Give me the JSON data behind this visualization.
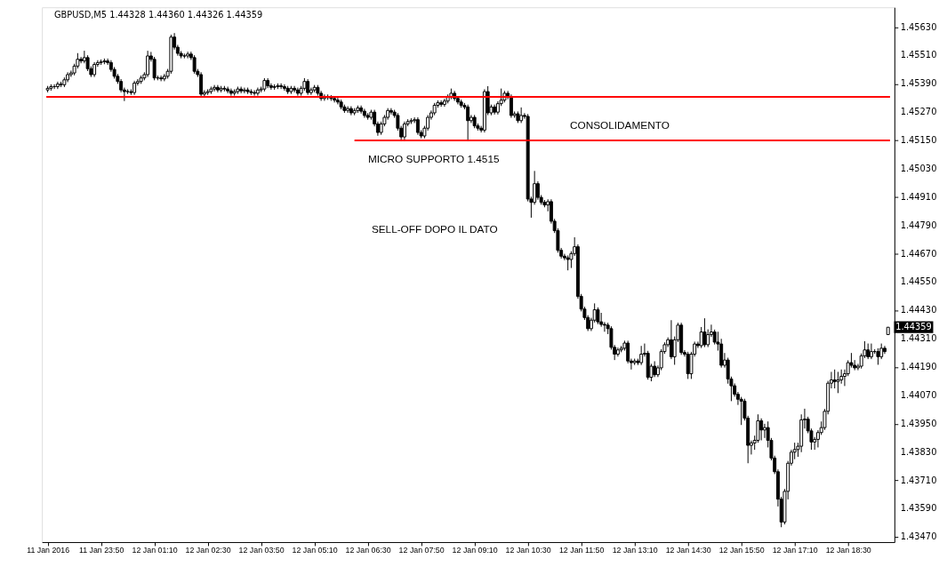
{
  "chart_data": {
    "type": "candlestick",
    "title": "GBPUSD,M5  1.44328 1.44360 1.44326 1.44359",
    "x": [
      "2016-01-11T22:30",
      "2016-01-11T22:35",
      "2016-01-11T22:40",
      "2016-01-11T22:45",
      "2016-01-11T22:50",
      "2016-01-11T22:55",
      "2016-01-11T23:00",
      "2016-01-11T23:05",
      "2016-01-11T23:10",
      "2016-01-11T23:15",
      "2016-01-11T23:20",
      "2016-01-11T23:25",
      "2016-01-11T23:30",
      "2016-01-11T23:35",
      "2016-01-11T23:40",
      "2016-01-11T23:45",
      "2016-01-11T23:50",
      "2016-01-11T23:55",
      "2016-01-12T00:00",
      "2016-01-12T00:05",
      "2016-01-12T00:10",
      "2016-01-12T00:15",
      "2016-01-12T00:20",
      "2016-01-12T00:25",
      "2016-01-12T00:30",
      "2016-01-12T00:35",
      "2016-01-12T00:40",
      "2016-01-12T00:45",
      "2016-01-12T00:50",
      "2016-01-12T00:55",
      "2016-01-12T01:00",
      "2016-01-12T01:05",
      "2016-01-12T01:10",
      "2016-01-12T01:15",
      "2016-01-12T01:20",
      "2016-01-12T01:25",
      "2016-01-12T01:30",
      "2016-01-12T01:35",
      "2016-01-12T01:40",
      "2016-01-12T01:45",
      "2016-01-12T01:50",
      "2016-01-12T01:55",
      "2016-01-12T02:00",
      "2016-01-12T02:05",
      "2016-01-12T02:10",
      "2016-01-12T02:15",
      "2016-01-12T02:20",
      "2016-01-12T02:25",
      "2016-01-12T02:30",
      "2016-01-12T02:35",
      "2016-01-12T02:40",
      "2016-01-12T02:45",
      "2016-01-12T02:50",
      "2016-01-12T02:55",
      "2016-01-12T03:00",
      "2016-01-12T03:05",
      "2016-01-12T03:10",
      "2016-01-12T03:15",
      "2016-01-12T03:20",
      "2016-01-12T03:25",
      "2016-01-12T03:30",
      "2016-01-12T03:35",
      "2016-01-12T03:40",
      "2016-01-12T03:45",
      "2016-01-12T03:50",
      "2016-01-12T03:55",
      "2016-01-12T04:00",
      "2016-01-12T04:05",
      "2016-01-12T04:10",
      "2016-01-12T04:15",
      "2016-01-12T04:20",
      "2016-01-12T04:25",
      "2016-01-12T04:30",
      "2016-01-12T04:35",
      "2016-01-12T04:40",
      "2016-01-12T04:45",
      "2016-01-12T04:50",
      "2016-01-12T04:55",
      "2016-01-12T05:00",
      "2016-01-12T05:05",
      "2016-01-12T05:10",
      "2016-01-12T05:15",
      "2016-01-12T05:20",
      "2016-01-12T05:25",
      "2016-01-12T05:30",
      "2016-01-12T05:35",
      "2016-01-12T05:40",
      "2016-01-12T05:45",
      "2016-01-12T05:50",
      "2016-01-12T05:55",
      "2016-01-12T06:00",
      "2016-01-12T06:05",
      "2016-01-12T06:10",
      "2016-01-12T06:15",
      "2016-01-12T06:20",
      "2016-01-12T06:25",
      "2016-01-12T06:30",
      "2016-01-12T06:35",
      "2016-01-12T06:40",
      "2016-01-12T06:45",
      "2016-01-12T06:50",
      "2016-01-12T06:55",
      "2016-01-12T07:00",
      "2016-01-12T07:05",
      "2016-01-12T07:10",
      "2016-01-12T07:15",
      "2016-01-12T07:20",
      "2016-01-12T07:25",
      "2016-01-12T07:30",
      "2016-01-12T07:35",
      "2016-01-12T07:40",
      "2016-01-12T07:45",
      "2016-01-12T07:50",
      "2016-01-12T07:55",
      "2016-01-12T08:00",
      "2016-01-12T08:05",
      "2016-01-12T08:10",
      "2016-01-12T08:15",
      "2016-01-12T08:20",
      "2016-01-12T08:25",
      "2016-01-12T08:30",
      "2016-01-12T08:35",
      "2016-01-12T08:40",
      "2016-01-12T08:45",
      "2016-01-12T08:50",
      "2016-01-12T08:55",
      "2016-01-12T09:00",
      "2016-01-12T09:05",
      "2016-01-12T09:10",
      "2016-01-12T09:15",
      "2016-01-12T09:20",
      "2016-01-12T09:25",
      "2016-01-12T09:30",
      "2016-01-12T09:35",
      "2016-01-12T09:40",
      "2016-01-12T09:45",
      "2016-01-12T09:50",
      "2016-01-12T09:55",
      "2016-01-12T10:00",
      "2016-01-12T10:05",
      "2016-01-12T10:10",
      "2016-01-12T10:15",
      "2016-01-12T10:20",
      "2016-01-12T10:25",
      "2016-01-12T10:30",
      "2016-01-12T10:35",
      "2016-01-12T10:40",
      "2016-01-12T10:45",
      "2016-01-12T10:50",
      "2016-01-12T10:55",
      "2016-01-12T11:00",
      "2016-01-12T11:05",
      "2016-01-12T11:10",
      "2016-01-12T11:15",
      "2016-01-12T11:20",
      "2016-01-12T11:25",
      "2016-01-12T11:30",
      "2016-01-12T11:35",
      "2016-01-12T11:40",
      "2016-01-12T11:45",
      "2016-01-12T11:50",
      "2016-01-12T11:55",
      "2016-01-12T12:00",
      "2016-01-12T12:05",
      "2016-01-12T12:10",
      "2016-01-12T12:15",
      "2016-01-12T12:20",
      "2016-01-12T12:25",
      "2016-01-12T12:30",
      "2016-01-12T12:35",
      "2016-01-12T12:40",
      "2016-01-12T12:45",
      "2016-01-12T12:50",
      "2016-01-12T12:55",
      "2016-01-12T13:00",
      "2016-01-12T13:05",
      "2016-01-12T13:10",
      "2016-01-12T13:15",
      "2016-01-12T13:20",
      "2016-01-12T13:25",
      "2016-01-12T13:30",
      "2016-01-12T13:35",
      "2016-01-12T13:40",
      "2016-01-12T13:45",
      "2016-01-12T13:50",
      "2016-01-12T13:55",
      "2016-01-12T14:00",
      "2016-01-12T14:05",
      "2016-01-12T14:10",
      "2016-01-12T14:15",
      "2016-01-12T14:20",
      "2016-01-12T14:25",
      "2016-01-12T14:30",
      "2016-01-12T14:35",
      "2016-01-12T14:40",
      "2016-01-12T14:45",
      "2016-01-12T14:50",
      "2016-01-12T14:55",
      "2016-01-12T15:00",
      "2016-01-12T15:05",
      "2016-01-12T15:10",
      "2016-01-12T15:15",
      "2016-01-12T15:20",
      "2016-01-12T15:25",
      "2016-01-12T15:30",
      "2016-01-12T15:35",
      "2016-01-12T15:40",
      "2016-01-12T15:45",
      "2016-01-12T15:50",
      "2016-01-12T15:55",
      "2016-01-12T16:00",
      "2016-01-12T16:05",
      "2016-01-12T16:10",
      "2016-01-12T16:15",
      "2016-01-12T16:20",
      "2016-01-12T16:25",
      "2016-01-12T16:30",
      "2016-01-12T16:35",
      "2016-01-12T16:40",
      "2016-01-12T16:45",
      "2016-01-12T16:50",
      "2016-01-12T16:55",
      "2016-01-12T17:00",
      "2016-01-12T17:05",
      "2016-01-12T17:10",
      "2016-01-12T17:15",
      "2016-01-12T17:20",
      "2016-01-12T17:25",
      "2016-01-12T17:30",
      "2016-01-12T17:35",
      "2016-01-12T17:40",
      "2016-01-12T17:45",
      "2016-01-12T17:50",
      "2016-01-12T17:55",
      "2016-01-12T18:00",
      "2016-01-12T18:05",
      "2016-01-12T18:10",
      "2016-01-12T18:15",
      "2016-01-12T18:20",
      "2016-01-12T18:25",
      "2016-01-12T18:30",
      "2016-01-12T18:35",
      "2016-01-12T18:40",
      "2016-01-12T18:45",
      "2016-01-12T18:50",
      "2016-01-12T18:55",
      "2016-01-12T19:00",
      "2016-01-12T19:05",
      "2016-01-12T19:10",
      "2016-01-12T19:15",
      "2016-01-12T19:20",
      "2016-01-12T19:25",
      "2016-01-12T19:30"
    ],
    "ohlc": [
      [
        1.45364,
        1.45381,
        1.45354,
        1.45371
      ],
      [
        1.45371,
        1.45388,
        1.45361,
        1.45378
      ],
      [
        1.45378,
        1.45388,
        1.45368,
        1.45378
      ],
      [
        1.45378,
        1.45399,
        1.45368,
        1.45389
      ],
      [
        1.45389,
        1.45399,
        1.45376,
        1.45386
      ],
      [
        1.45386,
        1.45417,
        1.45376,
        1.45407
      ],
      [
        1.45407,
        1.45439,
        1.45397,
        1.45429
      ],
      [
        1.45429,
        1.45446,
        1.45419,
        1.45436
      ],
      [
        1.45436,
        1.45475,
        1.45426,
        1.45465
      ],
      [
        1.45465,
        1.4552,
        1.45455,
        1.45494
      ],
      [
        1.45494,
        1.45504,
        1.45477,
        1.45487
      ],
      [
        1.45487,
        1.4553,
        1.45477,
        1.45501
      ],
      [
        1.45501,
        1.45511,
        1.45444,
        1.45454
      ],
      [
        1.45454,
        1.45464,
        1.45419,
        1.45429
      ],
      [
        1.45429,
        1.45482,
        1.45419,
        1.45472
      ],
      [
        1.45472,
        1.4549,
        1.45462,
        1.4548
      ],
      [
        1.4548,
        1.45493,
        1.4547,
        1.45483
      ],
      [
        1.45483,
        1.45497,
        1.45473,
        1.45487
      ],
      [
        1.45487,
        1.45497,
        1.4547,
        1.4548
      ],
      [
        1.4548,
        1.4549,
        1.45441,
        1.45451
      ],
      [
        1.45451,
        1.45461,
        1.45412,
        1.45422
      ],
      [
        1.45422,
        1.45432,
        1.4539,
        1.454
      ],
      [
        1.454,
        1.4541,
        1.45354,
        1.45364
      ],
      [
        1.45364,
        1.45374,
        1.45317,
        1.45357
      ],
      [
        1.45357,
        1.45367,
        1.45347,
        1.45357
      ],
      [
        1.45357,
        1.45367,
        1.45343,
        1.45353
      ],
      [
        1.45353,
        1.45403,
        1.45343,
        1.45393
      ],
      [
        1.45393,
        1.4541,
        1.45383,
        1.454
      ],
      [
        1.454,
        1.45425,
        1.4539,
        1.45415
      ],
      [
        1.45415,
        1.45439,
        1.45405,
        1.45429
      ],
      [
        1.45429,
        1.4553,
        1.45419,
        1.45508
      ],
      [
        1.45508,
        1.45525,
        1.45484,
        1.45494
      ],
      [
        1.45494,
        1.45504,
        1.45405,
        1.45415
      ],
      [
        1.45415,
        1.45425,
        1.45405,
        1.45415
      ],
      [
        1.45415,
        1.45425,
        1.45401,
        1.45411
      ],
      [
        1.45411,
        1.45432,
        1.45401,
        1.45422
      ],
      [
        1.45422,
        1.45453,
        1.45412,
        1.45443
      ],
      [
        1.45443,
        1.45598,
        1.45433,
        1.45588
      ],
      [
        1.45588,
        1.45605,
        1.45535,
        1.45545
      ],
      [
        1.45545,
        1.45555,
        1.45509,
        1.45519
      ],
      [
        1.45519,
        1.45529,
        1.45498,
        1.45508
      ],
      [
        1.45508,
        1.45518,
        1.45498,
        1.45508
      ],
      [
        1.45508,
        1.45526,
        1.45498,
        1.45516
      ],
      [
        1.45516,
        1.45526,
        1.45491,
        1.45501
      ],
      [
        1.45501,
        1.45511,
        1.45433,
        1.45443
      ],
      [
        1.45443,
        1.45453,
        1.45419,
        1.45429
      ],
      [
        1.45429,
        1.45439,
        1.45336,
        1.45346
      ],
      [
        1.45346,
        1.45363,
        1.45336,
        1.45353
      ],
      [
        1.45353,
        1.45367,
        1.45343,
        1.45357
      ],
      [
        1.45357,
        1.45378,
        1.45347,
        1.45368
      ],
      [
        1.45368,
        1.45385,
        1.45358,
        1.45375
      ],
      [
        1.45375,
        1.45385,
        1.45354,
        1.45364
      ],
      [
        1.45364,
        1.45381,
        1.45354,
        1.45371
      ],
      [
        1.45371,
        1.45381,
        1.45358,
        1.45368
      ],
      [
        1.45368,
        1.45378,
        1.4535,
        1.4536
      ],
      [
        1.4536,
        1.4537,
        1.4534,
        1.4535
      ],
      [
        1.4535,
        1.45367,
        1.4534,
        1.45357
      ],
      [
        1.45357,
        1.45378,
        1.45347,
        1.45368
      ],
      [
        1.45368,
        1.45378,
        1.4535,
        1.4536
      ],
      [
        1.4536,
        1.45374,
        1.4535,
        1.45364
      ],
      [
        1.45364,
        1.45374,
        1.45347,
        1.45357
      ],
      [
        1.45357,
        1.45367,
        1.45343,
        1.45353
      ],
      [
        1.45353,
        1.45363,
        1.4534,
        1.4535
      ],
      [
        1.4535,
        1.45374,
        1.4534,
        1.45364
      ],
      [
        1.45364,
        1.45378,
        1.45354,
        1.45368
      ],
      [
        1.45368,
        1.45414,
        1.45358,
        1.45404
      ],
      [
        1.45404,
        1.45414,
        1.45372,
        1.45382
      ],
      [
        1.45382,
        1.45392,
        1.45365,
        1.45375
      ],
      [
        1.45375,
        1.45388,
        1.45365,
        1.45378
      ],
      [
        1.45378,
        1.45392,
        1.45368,
        1.45382
      ],
      [
        1.45382,
        1.45392,
        1.45368,
        1.45378
      ],
      [
        1.45378,
        1.45388,
        1.45361,
        1.45371
      ],
      [
        1.45371,
        1.45381,
        1.45347,
        1.45357
      ],
      [
        1.45357,
        1.45381,
        1.45347,
        1.45371
      ],
      [
        1.45371,
        1.45381,
        1.45354,
        1.45364
      ],
      [
        1.45364,
        1.45374,
        1.4534,
        1.4535
      ],
      [
        1.4535,
        1.45381,
        1.4534,
        1.45371
      ],
      [
        1.45371,
        1.45414,
        1.45361,
        1.454
      ],
      [
        1.454,
        1.4541,
        1.45343,
        1.45353
      ],
      [
        1.45353,
        1.45374,
        1.45343,
        1.45364
      ],
      [
        1.45364,
        1.45385,
        1.45354,
        1.45375
      ],
      [
        1.45375,
        1.45385,
        1.4534,
        1.4535
      ],
      [
        1.4535,
        1.4536,
        1.45318,
        1.45328
      ],
      [
        1.45328,
        1.45345,
        1.45318,
        1.45335
      ],
      [
        1.45335,
        1.45345,
        1.45322,
        1.45332
      ],
      [
        1.45332,
        1.45342,
        1.45318,
        1.45328
      ],
      [
        1.45328,
        1.45338,
        1.45311,
        1.45321
      ],
      [
        1.45321,
        1.45331,
        1.45303,
        1.45313
      ],
      [
        1.45313,
        1.45323,
        1.45282,
        1.45292
      ],
      [
        1.45292,
        1.45302,
        1.45267,
        1.45277
      ],
      [
        1.45277,
        1.45295,
        1.45267,
        1.45285
      ],
      [
        1.45285,
        1.45295,
        1.45257,
        1.45267
      ],
      [
        1.45267,
        1.45287,
        1.45257,
        1.45277
      ],
      [
        1.45277,
        1.45298,
        1.45267,
        1.45288
      ],
      [
        1.45288,
        1.45298,
        1.45264,
        1.45274
      ],
      [
        1.45274,
        1.45284,
        1.45246,
        1.45256
      ],
      [
        1.45256,
        1.45266,
        1.45238,
        1.45248
      ],
      [
        1.45248,
        1.4528,
        1.45238,
        1.4527
      ],
      [
        1.4527,
        1.4528,
        1.4521,
        1.4522
      ],
      [
        1.4522,
        1.4523,
        1.4517,
        1.45184
      ],
      [
        1.45184,
        1.4523,
        1.45174,
        1.4522
      ],
      [
        1.4522,
        1.45258,
        1.4521,
        1.45248
      ],
      [
        1.45248,
        1.45287,
        1.45238,
        1.45277
      ],
      [
        1.45277,
        1.45287,
        1.4526,
        1.4527
      ],
      [
        1.4527,
        1.4528,
        1.45246,
        1.45256
      ],
      [
        1.45256,
        1.45266,
        1.45192,
        1.45202
      ],
      [
        1.45202,
        1.45212,
        1.4515,
        1.45165
      ],
      [
        1.45165,
        1.4523,
        1.4515,
        1.4522
      ],
      [
        1.4522,
        1.4524,
        1.4521,
        1.4523
      ],
      [
        1.4523,
        1.45244,
        1.4522,
        1.45234
      ],
      [
        1.45234,
        1.45248,
        1.45224,
        1.45238
      ],
      [
        1.45238,
        1.45248,
        1.45174,
        1.45184
      ],
      [
        1.45184,
        1.45194,
        1.45159,
        1.45169
      ],
      [
        1.45169,
        1.45212,
        1.45159,
        1.45202
      ],
      [
        1.45202,
        1.45258,
        1.45192,
        1.45248
      ],
      [
        1.45248,
        1.45277,
        1.45238,
        1.45267
      ],
      [
        1.45267,
        1.45309,
        1.45257,
        1.45299
      ],
      [
        1.45299,
        1.4532,
        1.45289,
        1.4531
      ],
      [
        1.4531,
        1.4532,
        1.45293,
        1.45303
      ],
      [
        1.45303,
        1.45327,
        1.45293,
        1.45317
      ],
      [
        1.45317,
        1.45345,
        1.45307,
        1.45335
      ],
      [
        1.45335,
        1.4537,
        1.45325,
        1.4535
      ],
      [
        1.4535,
        1.4536,
        1.45318,
        1.45328
      ],
      [
        1.45328,
        1.45338,
        1.45303,
        1.45313
      ],
      [
        1.45313,
        1.45323,
        1.45289,
        1.45299
      ],
      [
        1.45299,
        1.45309,
        1.45282,
        1.45292
      ],
      [
        1.45292,
        1.45302,
        1.4515,
        1.45234
      ],
      [
        1.45234,
        1.45258,
        1.45224,
        1.45248
      ],
      [
        1.45248,
        1.45258,
        1.45202,
        1.45212
      ],
      [
        1.45212,
        1.45222,
        1.45192,
        1.45202
      ],
      [
        1.45202,
        1.45212,
        1.45184,
        1.45194
      ],
      [
        1.45194,
        1.45367,
        1.45184,
        1.45357
      ],
      [
        1.45357,
        1.4538,
        1.45257,
        1.45267
      ],
      [
        1.45267,
        1.45302,
        1.45257,
        1.45292
      ],
      [
        1.45292,
        1.45302,
        1.4526,
        1.4527
      ],
      [
        1.4527,
        1.45316,
        1.4526,
        1.45306
      ],
      [
        1.45306,
        1.4537,
        1.45296,
        1.45321
      ],
      [
        1.45321,
        1.4536,
        1.45311,
        1.4535
      ],
      [
        1.4535,
        1.4536,
        1.45325,
        1.45335
      ],
      [
        1.45335,
        1.45345,
        1.45246,
        1.45256
      ],
      [
        1.45256,
        1.45273,
        1.45246,
        1.45263
      ],
      [
        1.45263,
        1.45273,
        1.45224,
        1.45234
      ],
      [
        1.45234,
        1.4529,
        1.45224,
        1.45256
      ],
      [
        1.45256,
        1.45266,
        1.45242,
        1.45252
      ],
      [
        1.45252,
        1.45262,
        1.44892,
        1.44902
      ],
      [
        1.44902,
        1.44912,
        1.44823,
        1.44888
      ],
      [
        1.44888,
        1.45021,
        1.44878,
        1.44967
      ],
      [
        1.44967,
        1.44977,
        1.44899,
        1.44909
      ],
      [
        1.44909,
        1.44919,
        1.44878,
        1.44888
      ],
      [
        1.44888,
        1.44898,
        1.44867,
        1.44877
      ],
      [
        1.44877,
        1.44901,
        1.4485,
        1.44891
      ],
      [
        1.44891,
        1.44901,
        1.44798,
        1.44808
      ],
      [
        1.44808,
        1.44818,
        1.44758,
        1.44768
      ],
      [
        1.44768,
        1.44778,
        1.44675,
        1.44685
      ],
      [
        1.44685,
        1.44695,
        1.4465,
        1.4466
      ],
      [
        1.4466,
        1.4467,
        1.44643,
        1.44653
      ],
      [
        1.44653,
        1.44663,
        1.446,
        1.44646
      ],
      [
        1.44646,
        1.44681,
        1.4461,
        1.44671
      ],
      [
        1.44671,
        1.4474,
        1.44661,
        1.447
      ],
      [
        1.447,
        1.4471,
        1.4448,
        1.4449
      ],
      [
        1.4449,
        1.445,
        1.44426,
        1.44436
      ],
      [
        1.44436,
        1.44446,
        1.4439,
        1.444
      ],
      [
        1.444,
        1.4441,
        1.44343,
        1.44353
      ],
      [
        1.44353,
        1.44399,
        1.44343,
        1.44389
      ],
      [
        1.44389,
        1.4446,
        1.44379,
        1.44433
      ],
      [
        1.44433,
        1.44443,
        1.44372,
        1.44382
      ],
      [
        1.44382,
        1.4442,
        1.44361,
        1.44371
      ],
      [
        1.44371,
        1.44381,
        1.4434,
        1.44368
      ],
      [
        1.44368,
        1.44378,
        1.4433,
        1.44353
      ],
      [
        1.44353,
        1.44363,
        1.44264,
        1.44274
      ],
      [
        1.44274,
        1.44284,
        1.4422,
        1.44245
      ],
      [
        1.44245,
        1.44273,
        1.44235,
        1.44263
      ],
      [
        1.44263,
        1.4428,
        1.44253,
        1.4427
      ],
      [
        1.4427,
        1.44302,
        1.4426,
        1.44292
      ],
      [
        1.44292,
        1.44302,
        1.44206,
        1.44216
      ],
      [
        1.44216,
        1.44226,
        1.4418,
        1.44209
      ],
      [
        1.44209,
        1.44226,
        1.44199,
        1.44216
      ],
      [
        1.44216,
        1.44226,
        1.44199,
        1.44209
      ],
      [
        1.44209,
        1.4428,
        1.44199,
        1.44245
      ],
      [
        1.44245,
        1.4429,
        1.44235,
        1.44249
      ],
      [
        1.44249,
        1.44259,
        1.44137,
        1.44147
      ],
      [
        1.44147,
        1.44204,
        1.4413,
        1.44194
      ],
      [
        1.44194,
        1.44215,
        1.44148,
        1.44158
      ],
      [
        1.44158,
        1.44197,
        1.44148,
        1.44187
      ],
      [
        1.44187,
        1.44266,
        1.44177,
        1.44256
      ],
      [
        1.44256,
        1.44295,
        1.44246,
        1.44285
      ],
      [
        1.44285,
        1.44316,
        1.44275,
        1.44306
      ],
      [
        1.44306,
        1.44389,
        1.44224,
        1.44234
      ],
      [
        1.44234,
        1.4432,
        1.442,
        1.44306
      ],
      [
        1.44306,
        1.44378,
        1.44296,
        1.44368
      ],
      [
        1.44368,
        1.44378,
        1.44242,
        1.44252
      ],
      [
        1.44252,
        1.44262,
        1.44235,
        1.44245
      ],
      [
        1.44245,
        1.44255,
        1.4414,
        1.44162
      ],
      [
        1.44162,
        1.44255,
        1.4414,
        1.44245
      ],
      [
        1.44245,
        1.44298,
        1.44235,
        1.44288
      ],
      [
        1.44288,
        1.44298,
        1.44271,
        1.44281
      ],
      [
        1.44281,
        1.4436,
        1.44271,
        1.44339
      ],
      [
        1.44339,
        1.44397,
        1.44275,
        1.44285
      ],
      [
        1.44285,
        1.4435,
        1.44275,
        1.44328
      ],
      [
        1.44328,
        1.4437,
        1.44318,
        1.44339
      ],
      [
        1.44339,
        1.44349,
        1.44286,
        1.44296
      ],
      [
        1.44296,
        1.4434,
        1.4426,
        1.44288
      ],
      [
        1.44288,
        1.4431,
        1.44188,
        1.44198
      ],
      [
        1.44198,
        1.4425,
        1.44188,
        1.4422
      ],
      [
        1.4422,
        1.4423,
        1.4412,
        1.4414
      ],
      [
        1.4414,
        1.4415,
        1.44046,
        1.44111
      ],
      [
        1.44111,
        1.44121,
        1.44065,
        1.44075
      ],
      [
        1.44075,
        1.44085,
        1.4403,
        1.44054
      ],
      [
        1.44054,
        1.44064,
        1.43945,
        1.44046
      ],
      [
        1.44046,
        1.44056,
        1.43964,
        1.43974
      ],
      [
        1.43974,
        1.43984,
        1.43783,
        1.43859
      ],
      [
        1.43859,
        1.43879,
        1.4382,
        1.43869
      ],
      [
        1.43869,
        1.439,
        1.4384,
        1.4388
      ],
      [
        1.4388,
        1.4399,
        1.4387,
        1.43963
      ],
      [
        1.43963,
        1.43973,
        1.4388,
        1.43924
      ],
      [
        1.43924,
        1.4395,
        1.4389,
        1.43934
      ],
      [
        1.43934,
        1.4396,
        1.4385,
        1.4388
      ],
      [
        1.4388,
        1.4389,
        1.43795,
        1.43805
      ],
      [
        1.43805,
        1.43815,
        1.43737,
        1.43747
      ],
      [
        1.43747,
        1.43757,
        1.436,
        1.43631
      ],
      [
        1.43631,
        1.43641,
        1.43512,
        1.43534
      ],
      [
        1.43534,
        1.43674,
        1.43524,
        1.43664
      ],
      [
        1.43664,
        1.43793,
        1.4363,
        1.43783
      ],
      [
        1.43783,
        1.4384,
        1.43773,
        1.4383
      ],
      [
        1.4383,
        1.4387,
        1.438,
        1.43841
      ],
      [
        1.43841,
        1.4387,
        1.4381,
        1.43855
      ],
      [
        1.43855,
        1.4399,
        1.4383,
        1.43967
      ],
      [
        1.43967,
        1.44014,
        1.4393,
        1.4397
      ],
      [
        1.4397,
        1.4398,
        1.4391,
        1.4392
      ],
      [
        1.4392,
        1.4393,
        1.4384,
        1.43873
      ],
      [
        1.43873,
        1.43894,
        1.4384,
        1.43884
      ],
      [
        1.43884,
        1.43923,
        1.4385,
        1.43913
      ],
      [
        1.43913,
        1.4396,
        1.43903,
        1.43934
      ],
      [
        1.43934,
        1.44013,
        1.43924,
        1.44003
      ],
      [
        1.44003,
        1.44132,
        1.4399,
        1.44122
      ],
      [
        1.44122,
        1.4417,
        1.441,
        1.44136
      ],
      [
        1.44136,
        1.4418,
        1.441,
        1.44129
      ],
      [
        1.44129,
        1.4417,
        1.4408,
        1.44136
      ],
      [
        1.44136,
        1.4418,
        1.4412,
        1.44151
      ],
      [
        1.44151,
        1.4418,
        1.4411,
        1.44162
      ],
      [
        1.44162,
        1.44219,
        1.44152,
        1.44209
      ],
      [
        1.44209,
        1.4425,
        1.44188,
        1.44198
      ],
      [
        1.44198,
        1.4422,
        1.44177,
        1.44187
      ],
      [
        1.44187,
        1.44204,
        1.44177,
        1.44194
      ],
      [
        1.44194,
        1.44248,
        1.44184,
        1.44238
      ],
      [
        1.44238,
        1.443,
        1.44228,
        1.44263
      ],
      [
        1.44263,
        1.4429,
        1.44224,
        1.44234
      ],
      [
        1.44234,
        1.4429,
        1.44224,
        1.44256
      ],
      [
        1.44256,
        1.44266,
        1.44246,
        1.44256
      ],
      [
        1.44256,
        1.4427,
        1.442,
        1.44234
      ],
      [
        1.44234,
        1.4429,
        1.44224,
        1.4427
      ],
      [
        1.4427,
        1.4428,
        1.44246,
        1.44256
      ],
      [
        1.44328,
        1.4436,
        1.44326,
        1.44359
      ]
    ],
    "series": [
      {
        "type": "line",
        "color": "#ff0000",
        "x": [
          "2016-01-11T22:28",
          "2016-01-12T19:33"
        ],
        "values": [
          1.45335,
          1.45335
        ]
      },
      {
        "type": "line",
        "color": "#ff0000",
        "x": [
          "2016-01-12T06:10",
          "2016-01-12T19:33"
        ],
        "values": [
          1.4515,
          1.4515
        ]
      }
    ],
    "annotations": [
      "CONSOLIDAMENTO",
      "MICRO SUPPORTO 1.4515",
      "SELL-OFF DOPO IL DATO",
      "1.44359"
    ],
    "xlim": [
      "2016-01-11T22:28",
      "2016-01-12T19:33"
    ],
    "xticks": [
      {
        "value": "2016-01-11T22:30",
        "label": "11 Jan 2016"
      },
      {
        "value": "2016-01-11T23:50",
        "label": "11 Jan 23:50"
      },
      {
        "value": "2016-01-12T01:10",
        "label": "12 Jan 01:10"
      },
      {
        "value": "2016-01-12T02:30",
        "label": "12 Jan 02:30"
      },
      {
        "value": "2016-01-12T03:50",
        "label": "12 Jan 03:50"
      },
      {
        "value": "2016-01-12T05:10",
        "label": "12 Jan 05:10"
      },
      {
        "value": "2016-01-12T06:30",
        "label": "12 Jan 06:30"
      },
      {
        "value": "2016-01-12T07:50",
        "label": "12 Jan 07:50"
      },
      {
        "value": "2016-01-12T09:10",
        "label": "12 Jan 09:10"
      },
      {
        "value": "2016-01-12T10:30",
        "label": "12 Jan 10:30"
      },
      {
        "value": "2016-01-12T11:50",
        "label": "12 Jan 11:50"
      },
      {
        "value": "2016-01-12T13:10",
        "label": "12 Jan 13:10"
      },
      {
        "value": "2016-01-12T14:30",
        "label": "12 Jan 14:30"
      },
      {
        "value": "2016-01-12T15:50",
        "label": "12 Jan 15:50"
      },
      {
        "value": "2016-01-12T17:10",
        "label": "12 Jan 17:10"
      },
      {
        "value": "2016-01-12T18:30",
        "label": "12 Jan 18:30"
      }
    ],
    "ylim": [
      1.43449,
      1.45714
    ],
    "yticks": [
      {
        "value": 1.4563,
        "label": "1.45630"
      },
      {
        "value": 1.4551,
        "label": "1.45510"
      },
      {
        "value": 1.4539,
        "label": "1.45390"
      },
      {
        "value": 1.4527,
        "label": "1.45270"
      },
      {
        "value": 1.4515,
        "label": "1.45150"
      },
      {
        "value": 1.4503,
        "label": "1.45030"
      },
      {
        "value": 1.4491,
        "label": "1.44910"
      },
      {
        "value": 1.4479,
        "label": "1.44790"
      },
      {
        "value": 1.4467,
        "label": "1.44670"
      },
      {
        "value": 1.4455,
        "label": "1.44550"
      },
      {
        "value": 1.4443,
        "label": "1.44430"
      },
      {
        "value": 1.4431,
        "label": "1.44310"
      },
      {
        "value": 1.4419,
        "label": "1.44190"
      },
      {
        "value": 1.4407,
        "label": "1.44070"
      },
      {
        "value": 1.4395,
        "label": "1.43950"
      },
      {
        "value": 1.4383,
        "label": "1.43830"
      },
      {
        "value": 1.4371,
        "label": "1.43710"
      },
      {
        "value": 1.4359,
        "label": "1.43590"
      },
      {
        "value": 1.4347,
        "label": "1.43470"
      }
    ]
  }
}
